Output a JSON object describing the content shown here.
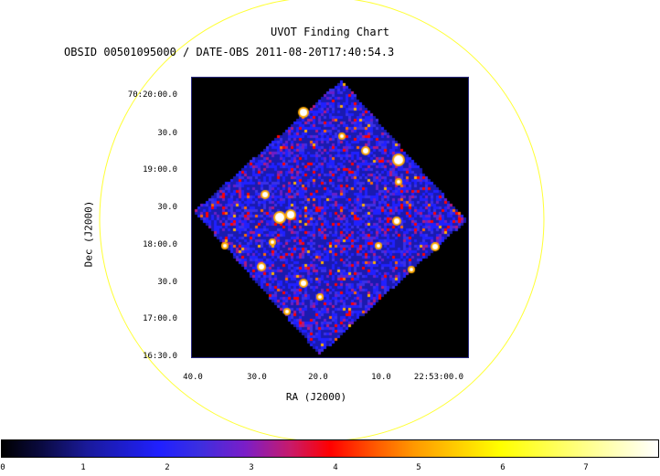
{
  "header": {
    "title": "UVOT Finding Chart",
    "subtitle": "OBSID 00501095000 / DATE-OBS 2011-08-20T17:40:54.3"
  },
  "axes": {
    "ylabel": "Dec (J2000)",
    "xlabel": "RA (J2000)",
    "yticks": [
      "70:20:00.0",
      "30.0",
      "19:00.0",
      "30.0",
      "18:00.0",
      "30.0",
      "17:00.0",
      "16:30.0"
    ],
    "xticks": [
      "40.0",
      "30.0",
      "20.0",
      "10.0",
      "22:53:00.0"
    ]
  },
  "colorbar": {
    "ticks": [
      "0",
      "1",
      "2",
      "3",
      "4",
      "5",
      "6",
      "7"
    ]
  },
  "colors": {
    "circle": "#ffff33",
    "background": "#000000",
    "low": "#2020ff",
    "mid": "#ff0000",
    "high": "#ffffff"
  }
}
